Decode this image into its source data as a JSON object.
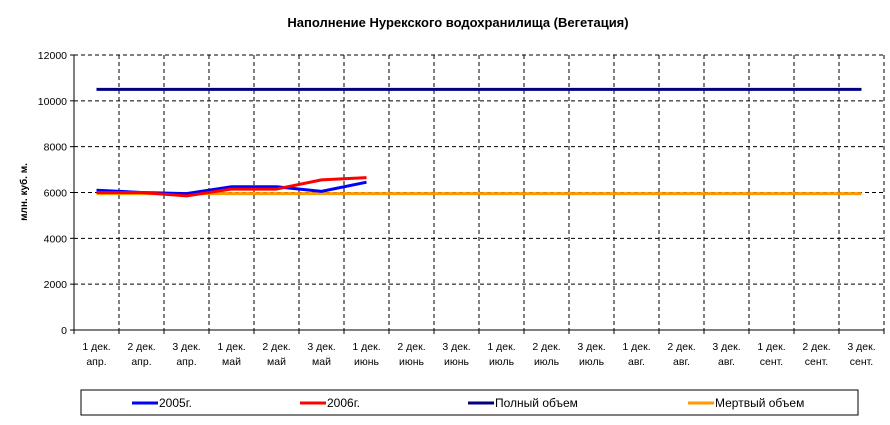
{
  "chart_data": {
    "type": "line",
    "title": "Наполнение Нурекского водохранилища (Вегетация)",
    "ylabel": "млн. куб. м.",
    "xlabel": "",
    "ylim": [
      0,
      12000
    ],
    "yticks": [
      0,
      2000,
      4000,
      6000,
      8000,
      10000,
      12000
    ],
    "grid": true,
    "legend_position": "bottom",
    "categories": [
      [
        "1 дек.",
        "апр."
      ],
      [
        "2 дек.",
        "апр."
      ],
      [
        "3 дек.",
        "апр."
      ],
      [
        "1 дек.",
        "май"
      ],
      [
        "2 дек.",
        "май"
      ],
      [
        "3 дек.",
        "май"
      ],
      [
        "1 дек.",
        "июнь"
      ],
      [
        "2 дек.",
        "июнь"
      ],
      [
        "3 дек.",
        "июнь"
      ],
      [
        "1 дек.",
        "июль"
      ],
      [
        "2 дек.",
        "июль"
      ],
      [
        "3 дек.",
        "июль"
      ],
      [
        "1 дек.",
        "авг."
      ],
      [
        "2 дек.",
        "авг."
      ],
      [
        "3 дек.",
        "авг."
      ],
      [
        "1 дек.",
        "сент."
      ],
      [
        "2 дек.",
        "сент."
      ],
      [
        "3 дек.",
        "сент."
      ]
    ],
    "series": [
      {
        "name": "2005г.",
        "color": "#0000ff",
        "values": [
          6100,
          6000,
          5950,
          6250,
          6250,
          6050,
          6450,
          null,
          null,
          null,
          null,
          null,
          null,
          null,
          null,
          null,
          null,
          null
        ]
      },
      {
        "name": "2006г.",
        "color": "#ff0000",
        "values": [
          6000,
          6000,
          5850,
          6150,
          6150,
          6550,
          6650,
          null,
          null,
          null,
          null,
          null,
          null,
          null,
          null,
          null,
          null,
          null
        ]
      },
      {
        "name": "Полный объем",
        "color": "#000080",
        "values": [
          10500,
          10500,
          10500,
          10500,
          10500,
          10500,
          10500,
          10500,
          10500,
          10500,
          10500,
          10500,
          10500,
          10500,
          10500,
          10500,
          10500,
          10500
        ]
      },
      {
        "name": "Мертвый объем",
        "color": "#ff9900",
        "values": [
          5950,
          5950,
          5950,
          5950,
          5950,
          5950,
          5950,
          5950,
          5950,
          5950,
          5950,
          5950,
          5950,
          5950,
          5950,
          5950,
          5950,
          5950
        ]
      }
    ]
  }
}
